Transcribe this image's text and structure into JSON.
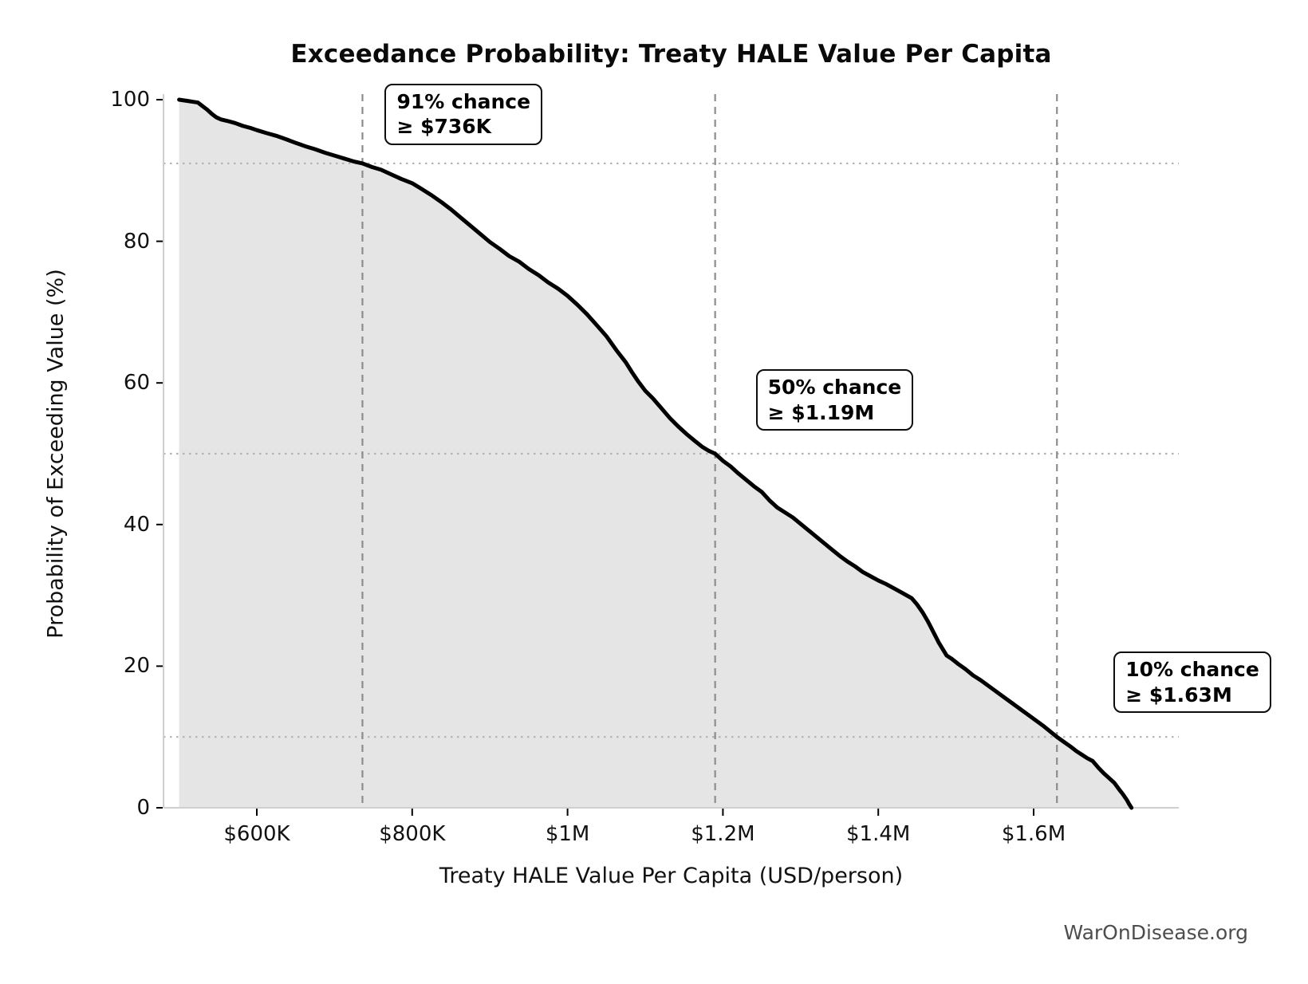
{
  "watermark": "WarOnDisease.org",
  "chart_data": {
    "type": "line",
    "title": "Exceedance Probability: Treaty HALE Value Per Capita",
    "xlabel": "Treaty HALE Value Per Capita (USD/person)",
    "ylabel": "Probability of Exceeding Value (%)",
    "x_tick_labels": [
      "$600K",
      "$800K",
      "$1M",
      "$1.2M",
      "$1.4M",
      "$1.6M"
    ],
    "x_tick_values_k": [
      600,
      800,
      1000,
      1200,
      1400,
      1600
    ],
    "y_tick_labels": [
      "0",
      "20",
      "40",
      "60",
      "80",
      "100"
    ],
    "y_tick_values": [
      0,
      20,
      40,
      60,
      80,
      100
    ],
    "xlim_k": [
      479,
      1787
    ],
    "ylim": [
      0,
      100
    ],
    "legend": "none",
    "grid": {
      "h_dotted_pct": [
        91,
        50,
        10
      ],
      "v_dashed_k": [
        736,
        1190,
        1630
      ]
    },
    "annotations": [
      {
        "label_line1": "91% chance",
        "label_line2": "≥ $736K",
        "x_k": 736,
        "prob_pct": 91
      },
      {
        "label_line1": "50% chance",
        "label_line2": "≥ $1.19M",
        "x_k": 1190,
        "prob_pct": 50
      },
      {
        "label_line1": "10% chance",
        "label_line2": "≥ $1.63M",
        "x_k": 1630,
        "prob_pct": 10
      }
    ],
    "series": [
      {
        "name": "exceedance-probability",
        "points_value_k_vs_pct": [
          [
            500,
            100
          ],
          [
            506,
            99.9
          ],
          [
            512,
            99.8
          ],
          [
            518,
            99.7
          ],
          [
            524,
            99.6
          ],
          [
            530,
            99.1
          ],
          [
            536,
            98.6
          ],
          [
            542,
            98.0
          ],
          [
            548,
            97.5
          ],
          [
            554,
            97.2
          ],
          [
            562,
            97.0
          ],
          [
            572,
            96.7
          ],
          [
            582,
            96.3
          ],
          [
            592,
            96.0
          ],
          [
            600,
            95.7
          ],
          [
            612,
            95.3
          ],
          [
            625,
            94.9
          ],
          [
            638,
            94.4
          ],
          [
            650,
            93.9
          ],
          [
            663,
            93.4
          ],
          [
            675,
            93.0
          ],
          [
            688,
            92.5
          ],
          [
            700,
            92.1
          ],
          [
            712,
            91.7
          ],
          [
            724,
            91.3
          ],
          [
            736,
            91.0
          ],
          [
            748,
            90.5
          ],
          [
            760,
            90.1
          ],
          [
            772,
            89.5
          ],
          [
            786,
            88.8
          ],
          [
            800,
            88.2
          ],
          [
            812,
            87.4
          ],
          [
            825,
            86.5
          ],
          [
            838,
            85.5
          ],
          [
            850,
            84.5
          ],
          [
            863,
            83.3
          ],
          [
            875,
            82.2
          ],
          [
            888,
            81.0
          ],
          [
            900,
            79.9
          ],
          [
            913,
            78.9
          ],
          [
            925,
            77.9
          ],
          [
            938,
            77.1
          ],
          [
            950,
            76.1
          ],
          [
            963,
            75.2
          ],
          [
            975,
            74.2
          ],
          [
            988,
            73.3
          ],
          [
            1000,
            72.3
          ],
          [
            1013,
            71.0
          ],
          [
            1025,
            69.7
          ],
          [
            1038,
            68.1
          ],
          [
            1050,
            66.6
          ],
          [
            1063,
            64.6
          ],
          [
            1075,
            62.9
          ],
          [
            1083,
            61.5
          ],
          [
            1091,
            60.2
          ],
          [
            1100,
            58.9
          ],
          [
            1110,
            57.8
          ],
          [
            1121,
            56.4
          ],
          [
            1132,
            55.0
          ],
          [
            1142,
            53.9
          ],
          [
            1153,
            52.8
          ],
          [
            1164,
            51.8
          ],
          [
            1173,
            51.0
          ],
          [
            1182,
            50.4
          ],
          [
            1190,
            50.0
          ],
          [
            1200,
            49.0
          ],
          [
            1210,
            48.2
          ],
          [
            1220,
            47.2
          ],
          [
            1230,
            46.3
          ],
          [
            1240,
            45.4
          ],
          [
            1250,
            44.6
          ],
          [
            1260,
            43.4
          ],
          [
            1270,
            42.4
          ],
          [
            1280,
            41.7
          ],
          [
            1290,
            41.0
          ],
          [
            1300,
            40.1
          ],
          [
            1310,
            39.2
          ],
          [
            1320,
            38.3
          ],
          [
            1330,
            37.4
          ],
          [
            1340,
            36.5
          ],
          [
            1350,
            35.6
          ],
          [
            1360,
            34.8
          ],
          [
            1370,
            34.1
          ],
          [
            1380,
            33.3
          ],
          [
            1390,
            32.7
          ],
          [
            1400,
            32.1
          ],
          [
            1410,
            31.6
          ],
          [
            1420,
            31.0
          ],
          [
            1430,
            30.4
          ],
          [
            1443,
            29.6
          ],
          [
            1450,
            28.7
          ],
          [
            1457,
            27.6
          ],
          [
            1464,
            26.3
          ],
          [
            1471,
            24.8
          ],
          [
            1478,
            23.3
          ],
          [
            1488,
            21.5
          ],
          [
            1495,
            21.0
          ],
          [
            1503,
            20.3
          ],
          [
            1512,
            19.6
          ],
          [
            1522,
            18.7
          ],
          [
            1532,
            18.0
          ],
          [
            1542,
            17.2
          ],
          [
            1552,
            16.4
          ],
          [
            1562,
            15.6
          ],
          [
            1572,
            14.8
          ],
          [
            1582,
            14.0
          ],
          [
            1592,
            13.2
          ],
          [
            1602,
            12.4
          ],
          [
            1612,
            11.6
          ],
          [
            1621,
            10.8
          ],
          [
            1630,
            10.0
          ],
          [
            1639,
            9.3
          ],
          [
            1648,
            8.6
          ],
          [
            1655,
            8.0
          ],
          [
            1662,
            7.5
          ],
          [
            1669,
            7.0
          ],
          [
            1676,
            6.6
          ],
          [
            1683,
            5.7
          ],
          [
            1690,
            4.9
          ],
          [
            1697,
            4.2
          ],
          [
            1704,
            3.5
          ],
          [
            1710,
            2.6
          ],
          [
            1715,
            1.9
          ],
          [
            1720,
            1.1
          ],
          [
            1723,
            0.5
          ],
          [
            1726,
            0.0
          ]
        ]
      }
    ],
    "colors": {
      "curve": "#000000",
      "fill_under_curve": "#e5e5e5",
      "dashed_line": "#8c8c8c",
      "dotted_line": "#b3b3b3",
      "axis_spine": "#cfcfcf",
      "tick_mark": "#000000",
      "watermark": "#4d4d4d"
    }
  }
}
